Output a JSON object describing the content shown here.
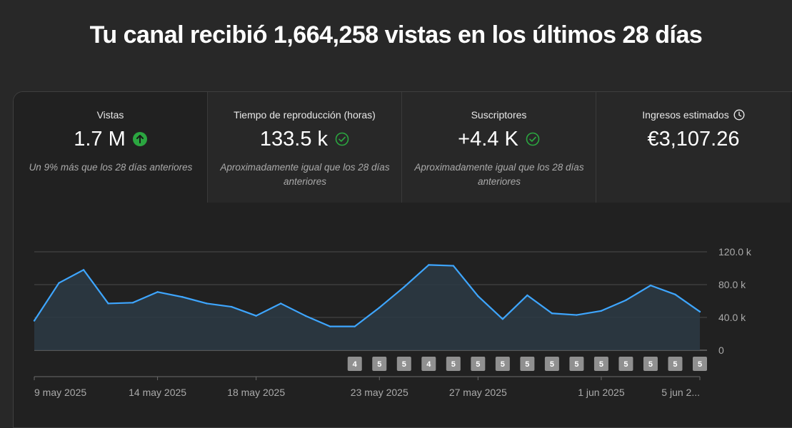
{
  "headline": "Tu canal recibió 1,664,258 vistas en los últimos 28 días",
  "metrics": [
    {
      "label": "Vistas",
      "value": "1.7 M",
      "note": "Un 9% más que los 28 días anteriores",
      "indicator": "up-arrow-icon",
      "active": true
    },
    {
      "label": "Tiempo de reproducción (horas)",
      "value": "133.5 k",
      "note": "Aproximadamente igual que los 28 días anteriores",
      "indicator": "check-circle-icon"
    },
    {
      "label": "Suscriptores",
      "value": "+4.4 K",
      "note": "Aproximadamente igual que los 28 días anteriores",
      "indicator": "check-circle-icon"
    },
    {
      "label": "Ingresos estimados",
      "value": "€3,107.26",
      "note": "",
      "indicator": "clock-icon"
    }
  ],
  "colors": {
    "line": "#3ea6ff",
    "up": "#2ba640",
    "check": "#2ba640"
  },
  "chart_data": {
    "type": "area",
    "x": [
      "9 may 2025",
      "10 may 2025",
      "11 may 2025",
      "12 may 2025",
      "13 may 2025",
      "14 may 2025",
      "15 may 2025",
      "16 may 2025",
      "17 may 2025",
      "18 may 2025",
      "19 may 2025",
      "20 may 2025",
      "21 may 2025",
      "22 may 2025",
      "23 may 2025",
      "24 may 2025",
      "25 may 2025",
      "26 may 2025",
      "27 may 2025",
      "28 may 2025",
      "29 may 2025",
      "30 may 2025",
      "31 may 2025",
      "1 jun 2025",
      "2 jun 2025",
      "3 jun 2025",
      "4 jun 2025",
      "5 jun 2025"
    ],
    "series": [
      {
        "values": [
          36000,
          82000,
          98000,
          57000,
          58000,
          71000,
          65000,
          57000,
          53000,
          42000,
          57000,
          42000,
          29000,
          29000,
          52000,
          77000,
          104000,
          103000,
          66000,
          38000,
          67000,
          45000,
          43000,
          48000,
          61000,
          79000,
          68000,
          47000
        ]
      }
    ],
    "y_ticks": [
      "120.0 k",
      "80.0 k",
      "40.0 k",
      "0"
    ],
    "y_tick_values": [
      120000,
      80000,
      40000,
      0
    ],
    "ylim": [
      0,
      120000
    ],
    "x_tick_labels": [
      {
        "index": 0,
        "label": "9 may 2025"
      },
      {
        "index": 5,
        "label": "14 may 2025"
      },
      {
        "index": 9,
        "label": "18 may 2025"
      },
      {
        "index": 14,
        "label": "23 may 2025"
      },
      {
        "index": 18,
        "label": "27 may 2025"
      },
      {
        "index": 23,
        "label": "1 jun 2025"
      },
      {
        "index": 27,
        "label": "5 jun 2..."
      }
    ],
    "markers": [
      {
        "index": 13,
        "label": "4"
      },
      {
        "index": 14,
        "label": "5"
      },
      {
        "index": 15,
        "label": "5"
      },
      {
        "index": 16,
        "label": "4"
      },
      {
        "index": 17,
        "label": "5"
      },
      {
        "index": 18,
        "label": "5"
      },
      {
        "index": 19,
        "label": "5"
      },
      {
        "index": 20,
        "label": "5"
      },
      {
        "index": 21,
        "label": "5"
      },
      {
        "index": 22,
        "label": "5"
      },
      {
        "index": 23,
        "label": "5"
      },
      {
        "index": 24,
        "label": "5"
      },
      {
        "index": 25,
        "label": "5"
      },
      {
        "index": 26,
        "label": "5"
      },
      {
        "index": 27,
        "label": "5"
      }
    ],
    "grid": true
  }
}
